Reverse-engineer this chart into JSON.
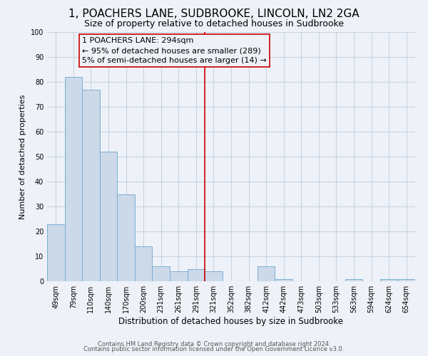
{
  "title": "1, POACHERS LANE, SUDBROOKE, LINCOLN, LN2 2GA",
  "subtitle": "Size of property relative to detached houses in Sudbrooke",
  "xlabel": "Distribution of detached houses by size in Sudbrooke",
  "ylabel": "Number of detached properties",
  "categories": [
    "49sqm",
    "79sqm",
    "110sqm",
    "140sqm",
    "170sqm",
    "200sqm",
    "231sqm",
    "261sqm",
    "291sqm",
    "321sqm",
    "352sqm",
    "382sqm",
    "412sqm",
    "442sqm",
    "473sqm",
    "503sqm",
    "533sqm",
    "563sqm",
    "594sqm",
    "624sqm",
    "654sqm"
  ],
  "values": [
    23,
    82,
    77,
    52,
    35,
    14,
    6,
    4,
    5,
    4,
    0,
    0,
    6,
    1,
    0,
    0,
    0,
    1,
    0,
    1,
    1
  ],
  "bar_color": "#ccd9e8",
  "bar_edge_color": "#7bafd4",
  "grid_color": "#c8d4e4",
  "vline_x": 8.5,
  "vline_color": "#cc0000",
  "annotation_text": "1 POACHERS LANE: 294sqm\n← 95% of detached houses are smaller (289)\n5% of semi-detached houses are larger (14) →",
  "annotation_box_edge": "#cc0000",
  "ylim": [
    0,
    100
  ],
  "yticks": [
    0,
    10,
    20,
    30,
    40,
    50,
    60,
    70,
    80,
    90,
    100
  ],
  "footer1": "Contains HM Land Registry data © Crown copyright and database right 2024.",
  "footer2": "Contains public sector information licensed under the Open Government Licence v3.0.",
  "background_color": "#eef2f8",
  "title_fontsize": 11,
  "subtitle_fontsize": 9,
  "xlabel_fontsize": 8.5,
  "ylabel_fontsize": 8,
  "tick_fontsize": 7,
  "annotation_fontsize": 8,
  "footer_fontsize": 6
}
